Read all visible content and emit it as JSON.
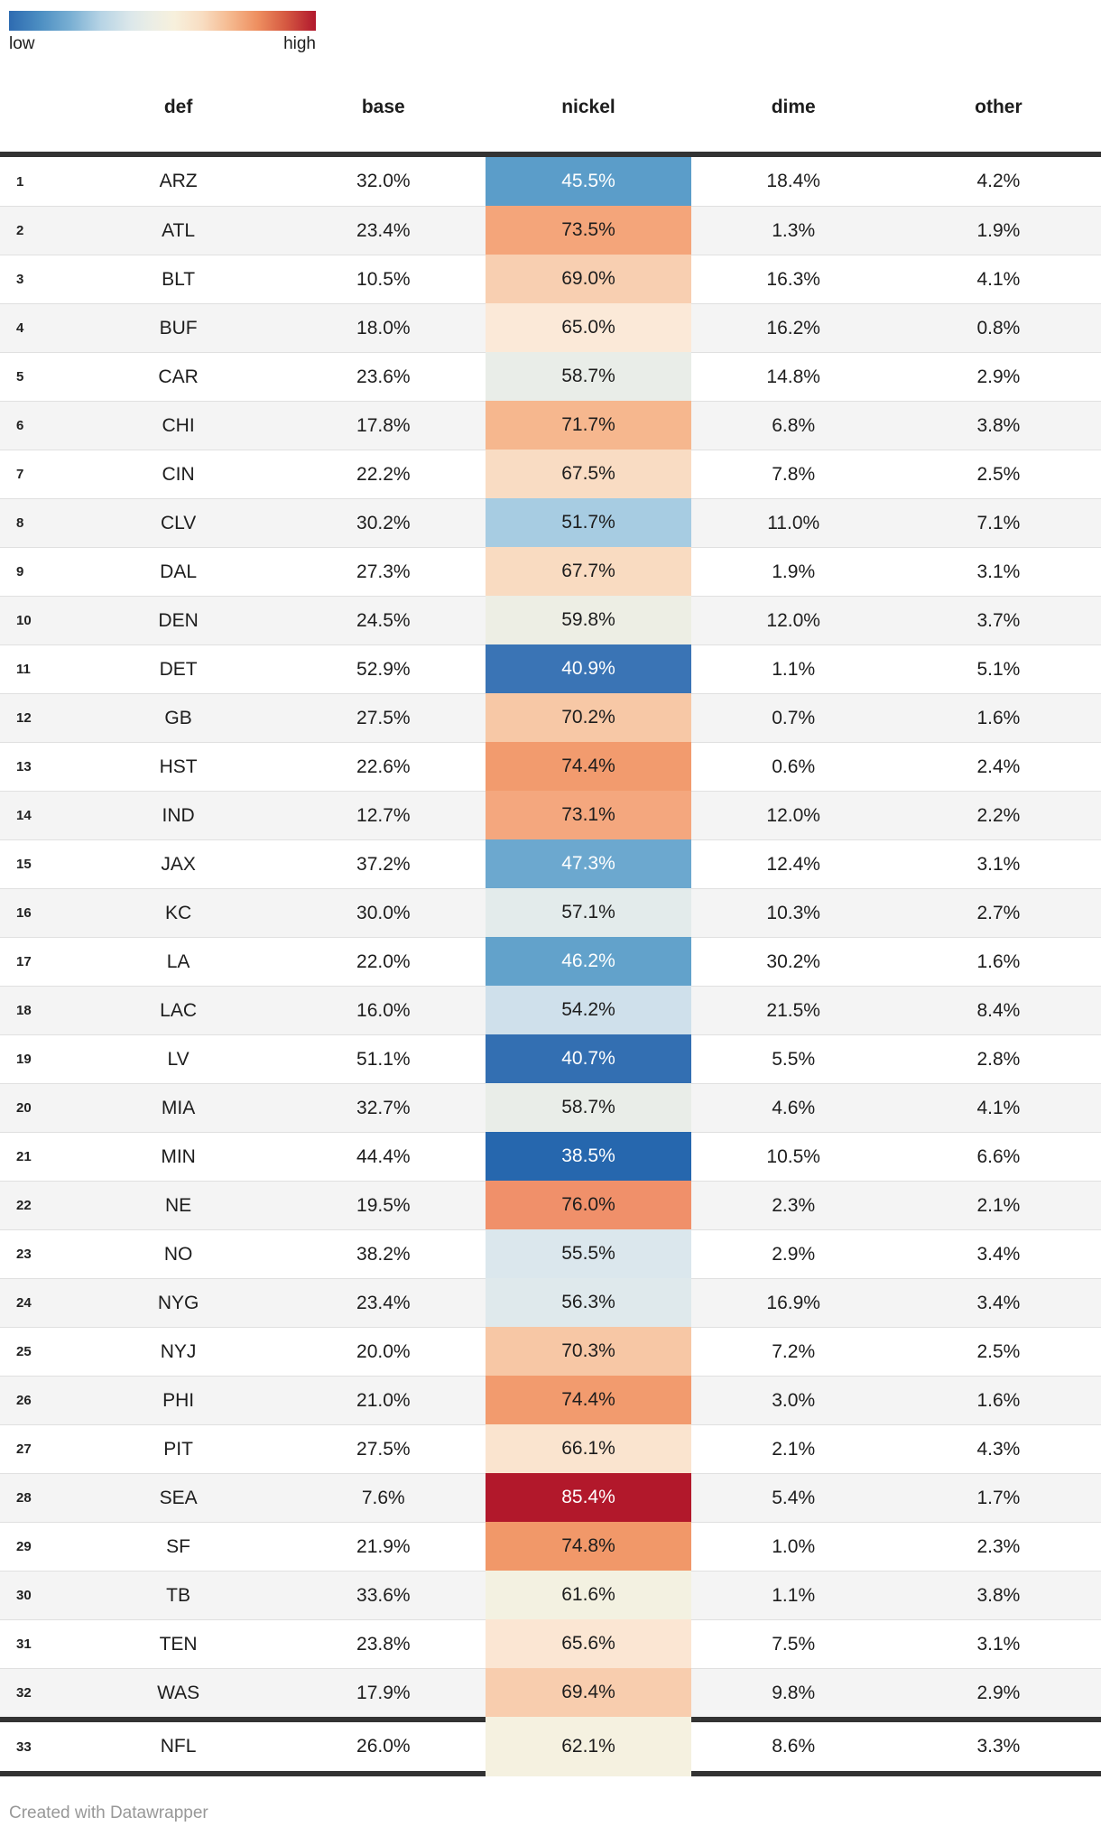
{
  "footer": {
    "credit": "Created with Datawrapper"
  },
  "chart_data": {
    "type": "table",
    "title": "",
    "heatmap_column": "nickel",
    "legend": {
      "low": "low",
      "high": "high"
    },
    "legend_colors": {
      "low_end": "#2e6bb1",
      "mid": "#f7f0dc",
      "high_end": "#b1182d"
    },
    "columns": [
      "def",
      "base",
      "nickel",
      "dime",
      "other"
    ],
    "value_format": "percent_one_decimal",
    "rows": [
      {
        "rank": 1,
        "def": "ARZ",
        "base": 32.0,
        "nickel": 45.5,
        "dime": 18.4,
        "other": 4.2,
        "nickel_color": "#5b9dc9",
        "nickel_text_color": "#ffffff"
      },
      {
        "rank": 2,
        "def": "ATL",
        "base": 23.4,
        "nickel": 73.5,
        "dime": 1.3,
        "other": 1.9,
        "nickel_color": "#f4a57a",
        "nickel_text_color": "#1d1d1d"
      },
      {
        "rank": 3,
        "def": "BLT",
        "base": 10.5,
        "nickel": 69.0,
        "dime": 16.3,
        "other": 4.1,
        "nickel_color": "#f8cfb1",
        "nickel_text_color": "#1d1d1d"
      },
      {
        "rank": 4,
        "def": "BUF",
        "base": 18.0,
        "nickel": 65.0,
        "dime": 16.2,
        "other": 0.8,
        "nickel_color": "#fbe9d8",
        "nickel_text_color": "#1d1d1d"
      },
      {
        "rank": 5,
        "def": "CAR",
        "base": 23.6,
        "nickel": 58.7,
        "dime": 14.8,
        "other": 2.9,
        "nickel_color": "#e9ede8",
        "nickel_text_color": "#1d1d1d"
      },
      {
        "rank": 6,
        "def": "CHI",
        "base": 17.8,
        "nickel": 71.7,
        "dime": 6.8,
        "other": 3.8,
        "nickel_color": "#f6b78e",
        "nickel_text_color": "#1d1d1d"
      },
      {
        "rank": 7,
        "def": "CIN",
        "base": 22.2,
        "nickel": 67.5,
        "dime": 7.8,
        "other": 2.5,
        "nickel_color": "#f9dcc3",
        "nickel_text_color": "#1d1d1d"
      },
      {
        "rank": 8,
        "def": "CLV",
        "base": 30.2,
        "nickel": 51.7,
        "dime": 11.0,
        "other": 7.1,
        "nickel_color": "#a7cce2",
        "nickel_text_color": "#1d1d1d"
      },
      {
        "rank": 9,
        "def": "DAL",
        "base": 27.3,
        "nickel": 67.7,
        "dime": 1.9,
        "other": 3.1,
        "nickel_color": "#f9dbc1",
        "nickel_text_color": "#1d1d1d"
      },
      {
        "rank": 10,
        "def": "DEN",
        "base": 24.5,
        "nickel": 59.8,
        "dime": 12.0,
        "other": 3.7,
        "nickel_color": "#edeee4",
        "nickel_text_color": "#1d1d1d"
      },
      {
        "rank": 11,
        "def": "DET",
        "base": 52.9,
        "nickel": 40.9,
        "dime": 1.1,
        "other": 5.1,
        "nickel_color": "#3a74b5",
        "nickel_text_color": "#ffffff"
      },
      {
        "rank": 12,
        "def": "GB",
        "base": 27.5,
        "nickel": 70.2,
        "dime": 0.7,
        "other": 1.6,
        "nickel_color": "#f7c8a6",
        "nickel_text_color": "#1d1d1d"
      },
      {
        "rank": 13,
        "def": "HST",
        "base": 22.6,
        "nickel": 74.4,
        "dime": 0.6,
        "other": 2.4,
        "nickel_color": "#f29b6e",
        "nickel_text_color": "#1d1d1d"
      },
      {
        "rank": 14,
        "def": "IND",
        "base": 12.7,
        "nickel": 73.1,
        "dime": 12.0,
        "other": 2.2,
        "nickel_color": "#f4a77e",
        "nickel_text_color": "#1d1d1d"
      },
      {
        "rank": 15,
        "def": "JAX",
        "base": 37.2,
        "nickel": 47.3,
        "dime": 12.4,
        "other": 3.1,
        "nickel_color": "#6ca8cf",
        "nickel_text_color": "#ffffff"
      },
      {
        "rank": 16,
        "def": "KC",
        "base": 30.0,
        "nickel": 57.1,
        "dime": 10.3,
        "other": 2.7,
        "nickel_color": "#e3ebeb",
        "nickel_text_color": "#1d1d1d"
      },
      {
        "rank": 17,
        "def": "LA",
        "base": 22.0,
        "nickel": 46.2,
        "dime": 30.2,
        "other": 1.6,
        "nickel_color": "#62a2cb",
        "nickel_text_color": "#ffffff"
      },
      {
        "rank": 18,
        "def": "LAC",
        "base": 16.0,
        "nickel": 54.2,
        "dime": 21.5,
        "other": 8.4,
        "nickel_color": "#cfe0eb",
        "nickel_text_color": "#1d1d1d"
      },
      {
        "rank": 19,
        "def": "LV",
        "base": 51.1,
        "nickel": 40.7,
        "dime": 5.5,
        "other": 2.8,
        "nickel_color": "#336fb2",
        "nickel_text_color": "#ffffff"
      },
      {
        "rank": 20,
        "def": "MIA",
        "base": 32.7,
        "nickel": 58.7,
        "dime": 4.6,
        "other": 4.1,
        "nickel_color": "#e9ede8",
        "nickel_text_color": "#1d1d1d"
      },
      {
        "rank": 21,
        "def": "MIN",
        "base": 44.4,
        "nickel": 38.5,
        "dime": 10.5,
        "other": 6.6,
        "nickel_color": "#2667ae",
        "nickel_text_color": "#ffffff"
      },
      {
        "rank": 22,
        "def": "NE",
        "base": 19.5,
        "nickel": 76.0,
        "dime": 2.3,
        "other": 2.1,
        "nickel_color": "#f0906a",
        "nickel_text_color": "#1d1d1d"
      },
      {
        "rank": 23,
        "def": "NO",
        "base": 38.2,
        "nickel": 55.5,
        "dime": 2.9,
        "other": 3.4,
        "nickel_color": "#dbe7ed",
        "nickel_text_color": "#1d1d1d"
      },
      {
        "rank": 24,
        "def": "NYG",
        "base": 23.4,
        "nickel": 56.3,
        "dime": 16.9,
        "other": 3.4,
        "nickel_color": "#dfe9ec",
        "nickel_text_color": "#1d1d1d"
      },
      {
        "rank": 25,
        "def": "NYJ",
        "base": 20.0,
        "nickel": 70.3,
        "dime": 7.2,
        "other": 2.5,
        "nickel_color": "#f7c7a5",
        "nickel_text_color": "#1d1d1d"
      },
      {
        "rank": 26,
        "def": "PHI",
        "base": 21.0,
        "nickel": 74.4,
        "dime": 3.0,
        "other": 1.6,
        "nickel_color": "#f29b6e",
        "nickel_text_color": "#1d1d1d"
      },
      {
        "rank": 27,
        "def": "PIT",
        "base": 27.5,
        "nickel": 66.1,
        "dime": 2.1,
        "other": 4.3,
        "nickel_color": "#fae4cf",
        "nickel_text_color": "#1d1d1d"
      },
      {
        "rank": 28,
        "def": "SEA",
        "base": 7.6,
        "nickel": 85.4,
        "dime": 5.4,
        "other": 1.7,
        "nickel_color": "#b2182b",
        "nickel_text_color": "#ffffff"
      },
      {
        "rank": 29,
        "def": "SF",
        "base": 21.9,
        "nickel": 74.8,
        "dime": 1.0,
        "other": 2.3,
        "nickel_color": "#f19869",
        "nickel_text_color": "#1d1d1d"
      },
      {
        "rank": 30,
        "def": "TB",
        "base": 33.6,
        "nickel": 61.6,
        "dime": 1.1,
        "other": 3.8,
        "nickel_color": "#f3f1e1",
        "nickel_text_color": "#1d1d1d"
      },
      {
        "rank": 31,
        "def": "TEN",
        "base": 23.8,
        "nickel": 65.6,
        "dime": 7.5,
        "other": 3.1,
        "nickel_color": "#fbe6d3",
        "nickel_text_color": "#1d1d1d"
      },
      {
        "rank": 32,
        "def": "WAS",
        "base": 17.9,
        "nickel": 69.4,
        "dime": 9.8,
        "other": 2.9,
        "nickel_color": "#f8cdae",
        "nickel_text_color": "#1d1d1d"
      },
      {
        "rank": 33,
        "def": "NFL",
        "base": 26.0,
        "nickel": 62.1,
        "dime": 8.6,
        "other": 3.3,
        "nickel_color": "#f5f1e0",
        "nickel_text_color": "#1d1d1d"
      }
    ]
  }
}
